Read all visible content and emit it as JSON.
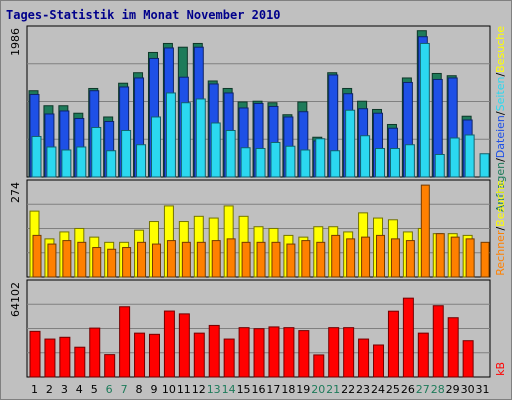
{
  "chart_data": [
    {
      "type": "bar",
      "title": "Tages-Statistik im Monat November 2010",
      "ymax_label": "1986",
      "ylim": [
        0,
        1986
      ],
      "grid": true,
      "categories": [
        "1",
        "2",
        "3",
        "4",
        "5",
        "6",
        "7",
        "8",
        "9",
        "10",
        "11",
        "12",
        "13",
        "14",
        "15",
        "16",
        "17",
        "18",
        "19",
        "20",
        "21",
        "22",
        "23",
        "24",
        "25",
        "26",
        "27",
        "28",
        "29",
        "30",
        "31"
      ],
      "series": [
        {
          "name": "Anfragen",
          "color": "#1E7B5A",
          "values": [
            1150,
            950,
            950,
            850,
            1180,
            800,
            1250,
            1390,
            1660,
            1780,
            1730,
            1780,
            1280,
            1180,
            1000,
            1010,
            990,
            830,
            1000,
            530,
            1390,
            1180,
            1010,
            900,
            700,
            1320,
            1950,
            1380,
            1350,
            810,
            null
          ]
        },
        {
          "name": "Dateien",
          "color": "#1E50E6",
          "values": [
            1100,
            840,
            880,
            780,
            1150,
            740,
            1200,
            1320,
            1580,
            1720,
            1330,
            1730,
            1240,
            1120,
            920,
            980,
            940,
            800,
            870,
            480,
            1360,
            1110,
            910,
            850,
            650,
            1260,
            1870,
            1300,
            1320,
            760,
            null
          ]
        },
        {
          "name": "Seiten",
          "color": "#2BD8F0",
          "values": [
            540,
            400,
            360,
            400,
            660,
            350,
            620,
            430,
            800,
            1120,
            990,
            1040,
            720,
            620,
            390,
            380,
            460,
            410,
            360,
            510,
            350,
            890,
            550,
            380,
            380,
            430,
            1780,
            300,
            520,
            560,
            310
          ]
        }
      ]
    },
    {
      "type": "bar",
      "ymax_label": "274",
      "ylim": [
        0,
        274
      ],
      "grid": true,
      "series": [
        {
          "name": "Besuche",
          "color": "#FFFF00",
          "values": [
            190,
            110,
            130,
            140,
            115,
            100,
            100,
            135,
            160,
            205,
            160,
            175,
            170,
            205,
            175,
            145,
            140,
            120,
            115,
            145,
            145,
            130,
            185,
            170,
            165,
            130,
            140,
            125,
            125,
            120,
            null
          ]
        },
        {
          "name": "Rechner",
          "color": "#FF8000",
          "values": [
            120,
            95,
            105,
            100,
            85,
            80,
            85,
            100,
            95,
            105,
            100,
            100,
            105,
            110,
            100,
            100,
            100,
            95,
            105,
            100,
            120,
            110,
            115,
            120,
            110,
            105,
            265,
            125,
            115,
            110,
            100
          ]
        }
      ]
    },
    {
      "type": "bar",
      "ymax_label": "64102",
      "ylim": [
        0,
        64102
      ],
      "grid": true,
      "series": [
        {
          "name": "kB",
          "color": "#FF0000",
          "values": [
            30800,
            25600,
            26800,
            20100,
            33000,
            15100,
            47400,
            29600,
            28800,
            44500,
            42600,
            29600,
            34800,
            25600,
            33300,
            32600,
            33800,
            33300,
            31300,
            14900,
            33300,
            33300,
            25600,
            21600,
            44400,
            53200,
            29600,
            48100,
            40000,
            24500
          ]
        }
      ]
    }
  ],
  "x_weekend_days": [
    "6",
    "7",
    "13",
    "14",
    "20",
    "21",
    "27",
    "28"
  ],
  "legend_side": {
    "top": [
      "Anfragen",
      "/",
      "Dateien",
      "/",
      "Seiten",
      "/",
      "Besuche"
    ],
    "middle": [
      "Rechner",
      "/",
      "Besuche"
    ],
    "bottom": [
      "kB"
    ]
  },
  "colors": {
    "background": "#C0C0C0",
    "plot_bg": "#C0C0C0",
    "grid": "#808080",
    "weekday_label": "#000000",
    "weekend_label": "#1E7B5A"
  }
}
